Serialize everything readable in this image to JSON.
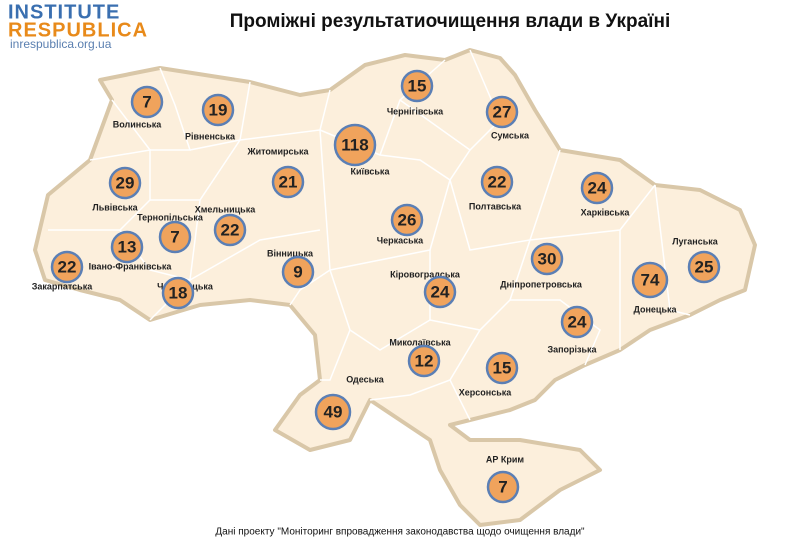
{
  "header": {
    "logo_line1": "INSTITUTE",
    "logo_line2": "RESPUBLICA",
    "url": "inrespublica.org.ua",
    "title": "Проміжні результатиочищення влади в Україні"
  },
  "regions": [
    {
      "name": "Волинська",
      "value": "7"
    },
    {
      "name": "Рівненська",
      "value": "19"
    },
    {
      "name": "Житомирська",
      "value": "21"
    },
    {
      "name": "Київська",
      "value": "118"
    },
    {
      "name": "Чернігівська",
      "value": "15"
    },
    {
      "name": "Сумська",
      "value": "27"
    },
    {
      "name": "Полтавська",
      "value": "22"
    },
    {
      "name": "Харківська",
      "value": "24"
    },
    {
      "name": "Луганська",
      "value": "25"
    },
    {
      "name": "Донецька",
      "value": "74"
    },
    {
      "name": "Запорізька",
      "value": "24"
    },
    {
      "name": "Дніпропетровська",
      "value": "30"
    },
    {
      "name": "Херсонська",
      "value": "15"
    },
    {
      "name": "АР Крим",
      "value": "7"
    },
    {
      "name": "Миколаївська",
      "value": "12"
    },
    {
      "name": "Одеська",
      "value": "49"
    },
    {
      "name": "Кіровоградська",
      "value": "24"
    },
    {
      "name": "Черкаська",
      "value": "26"
    },
    {
      "name": "Вінницька",
      "value": "9"
    },
    {
      "name": "Хмельницька",
      "value": "22"
    },
    {
      "name": "Тернопільська",
      "value": "7"
    },
    {
      "name": "Івано-Франківська",
      "value": "13"
    },
    {
      "name": "Чернівецька",
      "value": "18"
    },
    {
      "name": "Закарпатська",
      "value": "22"
    },
    {
      "name": "Львівська",
      "value": "29"
    }
  ],
  "footer": {
    "note": "Дані  проекту \"Моніторинг впровадження законодавства щодо очищення влади\""
  }
}
